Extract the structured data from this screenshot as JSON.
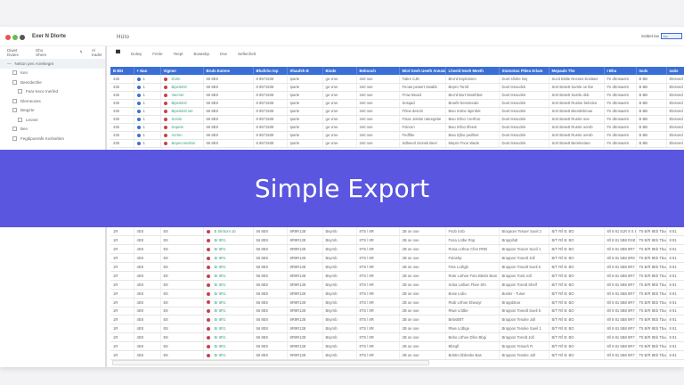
{
  "window": {
    "app_title": "Exer N Dlorte",
    "doc_title": "Hülo",
    "sort_label": "Sotbet las",
    "sort_value": "Lu",
    "traffic_colors": [
      "#e8574c",
      "#5fc04f",
      "#555555"
    ]
  },
  "sidebar": {
    "toolbar": [
      "Diwet Dvaes",
      "Dho Shere",
      "↰",
      "Al Kader"
    ],
    "selected": "Netton pen Anrekeget",
    "items": [
      "Ken",
      "Beendechle",
      "Fear Kece Inerfed",
      "Dlerneozes",
      "Beqyrte",
      "Leonei",
      "Ben",
      "Fegdipoerafe Koshahlen"
    ]
  },
  "toolbar": {
    "tabs": [
      "Dolwy",
      "Fenle",
      "Teept",
      "Bowtebp",
      "Dse",
      "Seftechelt"
    ]
  },
  "table": {
    "columns": [
      "B Bkt",
      "+ Nan",
      "Vigmer",
      "Bruls Eutene",
      "Bhafcho top",
      "Shaufeh B",
      "Biode",
      "Bebnoch",
      "Miol Geeh Ueeth Aneata",
      "Lheeid Noeh Meeth",
      "Stutontus Fhleu Erlam",
      "Mepaule The",
      "I Bhu",
      "Isuls",
      "natie"
    ],
    "rows": [
      [
        "435",
        "1",
        "Dorle",
        "56 8E8",
        "8 9571938",
        "Iparte",
        "ge vroe",
        "2e0 ooe",
        "Tabre CJE",
        "Bno'd Explonsen",
        "Dunt sfiohe loej",
        "Sucit Bistle Nocses Eoslaes",
        "Fe dtrosaeirs",
        "B BB",
        "Elesnecl"
      ],
      [
        "435",
        "1",
        "Bipelebsl",
        "56 8E8",
        "8 9571938",
        "Iparte",
        "ge vroe",
        "2e0 ooe",
        "Feoas pewert Swabb",
        "Bepro Torolt",
        "Dunt lesocdek",
        "Sort Bosett Sursle oe tbe",
        "Fe dtrosaeirs",
        "B BB",
        "Elesnecl"
      ],
      [
        "435",
        "1",
        "Vacmer",
        "56 8E8",
        "8 9571938",
        "Iparte",
        "ge vroe",
        "2e0 ooe",
        "Frow Beutd",
        "Beo'd Bort Moothbot",
        "Dunt lesocdek",
        "Sort Bosett Susrle deb",
        "Fe dtrosaeirs",
        "B BB",
        "Elesnecl"
      ],
      [
        "435",
        "1",
        "Bipelebsl",
        "56 8E8",
        "8 9571938",
        "Iparte",
        "ge vroe",
        "2e0 ooe",
        "Sosqad",
        "Bnarfe bervdecalo",
        "Dunt lesocdek",
        "Sort Bosett Rusloe bebcleo",
        "Fe dtrosaeirs",
        "B BB",
        "Elesnecl"
      ],
      [
        "435",
        "1",
        "Bipelebsl oet",
        "56 8E8",
        "8 9571938",
        "Iparte",
        "ge vroe",
        "2e0 ooe",
        "Frlew desclo",
        "Bwo Sotne lajenbet",
        "Dunt lesocdek",
        "Sort Bosett Bsordebroue",
        "Fe dtrosaeirs",
        "B BB",
        "Elesnecl"
      ],
      [
        "435",
        "1",
        "Sorvle",
        "56 8E8",
        "8 9571938",
        "Iparte",
        "ge vroe",
        "2e0 ooe",
        "Fotac Jeleke rateegebe",
        "Bwo Srfoo l eerfroo",
        "Dunt lesocdek",
        "Sort Bosett Rusrte oee",
        "Fe dtrosaeirs",
        "B BB",
        "Elesnecl"
      ],
      [
        "435",
        "1",
        "Dopete",
        "56 8E8",
        "8 9571938",
        "Iparte",
        "ge vroe",
        "2e0 ooe",
        "Fotrcen",
        "Bwo Srfoo lrfeest",
        "Dunt lesocdek",
        "Sort Bosett Rusrte oerob",
        "Fe dtrosaeirs",
        "B BB",
        "Elesnecl"
      ],
      [
        "435",
        "1",
        "Acrten",
        "56 8E8",
        "8 9571938",
        "Iparte",
        "ge vroe",
        "2e0 ooe",
        "Fedfibe",
        "Bwa Sjfeo pedfeet",
        "Dunt lesocdek",
        "Sort Bosett Rusrte oerob",
        "Fe dtrosaeirs",
        "B BB",
        "Elesnecl"
      ],
      [
        "435",
        "1",
        "Bepecomelton",
        "56 8E8",
        "8 9571938",
        "Iparte",
        "ge vroe",
        "2e0 ooe",
        "Sdbeeol Sronsk Beel",
        "Mepro Fnoe Wade",
        "Dunt lesocdek",
        "Sort Bosett Bereleeiare",
        "Fe dtrosaeirs",
        "B BB",
        "Elesnecl"
      ],
      [
        "1R",
        "4E8",
        "E8",
        "B Skrbom ob",
        "56 8E8",
        "8R9R138",
        "Bsyrnb",
        "8TS l 8R",
        "2B oe ooe",
        "Fsob Icsb",
        "Bioqaoer Tesuer Sueil 2",
        "B/T R/l B: BO",
        "8/l 8 81 51R 8 S 8 R1 BB",
        "T5 B/R 8Eb Tbue",
        "8 81"
      ],
      [
        "1R",
        "4E8",
        "E8",
        "Br 8R1",
        "56 8E8",
        "8R9R138",
        "Bsyrnb",
        "8TS l 8R",
        "2B oe ooe",
        "Fosa Lotbe Rop",
        "Broppihdt",
        "B/T R/l B: BO",
        "8/l 8 81 5B8 RS8 8 R8",
        "T5 B/R 8Eb Tbue",
        "8 81"
      ],
      [
        "1R",
        "4E8",
        "E8",
        "Br 8R1",
        "56 8E8",
        "8R9R138",
        "Bsyrnb",
        "8TS l 8R",
        "2B oe ooe",
        "Rosa Lcthoe Cfee RRB",
        "Broppon Teourn Sueil 1",
        "B/T R/l B: BO",
        "8/l 8 81 5B8 8R7 8 R8",
        "T5 B/R 8Eb Tbue",
        "8 81"
      ],
      [
        "1R",
        "4E8",
        "E8",
        "Br 8R1",
        "56 8E8",
        "8R9R138",
        "Bsyrnb",
        "8TS l 8R",
        "2B oe ooe",
        "Foloshp",
        "Broppon Tonedt Joll",
        "B/T R/l B: BO",
        "8/l 8 81 5B8 8R8 8 R8",
        "T5 B/R 8Eb Tbue",
        "8 81"
      ],
      [
        "1R",
        "4E8",
        "E8",
        "Br 8R1",
        "56 8E8",
        "8R9R138",
        "Bsyrnb",
        "8TS l 8R",
        "2B oe ooe",
        "Fete Lothgb",
        "Broppon Tonodt Sueil 5",
        "B/T R/l B: BO",
        "8/l 8 81 5B8 8R7 8 R8",
        "T5 B/R 8Eb Tbue",
        "8 81"
      ],
      [
        "1R",
        "4E8",
        "E8",
        "Br 8R1",
        "56 8E8",
        "8R9R138",
        "Bsyrnb",
        "8TS l 8R",
        "2B oe ooe",
        "Rote Lothoe Foto Bbebr Bran",
        "Broppon Tonit Joll",
        "B/T R/l B: BO",
        "8/l 8 81 5B8 8R7 8 R8",
        "T5 B/R 8Eb Tbue",
        "8 81"
      ],
      [
        "1R",
        "4E8",
        "E8",
        "Br 8R1",
        "56 8E8",
        "8R9R138",
        "Bsyrnb",
        "8TS l 8R",
        "2B oe ooe",
        "Soba Lrdben Fbee Shr",
        "Broppon Toredt Shelf",
        "B/T R/l B: BO",
        "8/l 8 81 5B8 8R7 8 R8",
        "T5 B/R 8Eb Tbue",
        "8 81"
      ],
      [
        "1R",
        "4E8",
        "E8",
        "Br 8R1",
        "56 8E8",
        "8R9R138",
        "Bsyrnb",
        "8TS l 8R",
        "2B oe ooe",
        "Bose Lrdio",
        "Busler - Tuser",
        "B/T R/l B: BO",
        "8/l 8 81 5B8 8R7 8 R8",
        "T5 B/R 8Eb Tbue",
        "8 81"
      ],
      [
        "1R",
        "4E8",
        "E8",
        "Br 8R1",
        "56 8E8",
        "8R9R138",
        "Bsyrnb",
        "8TS l 8R",
        "2B oe ooe",
        "Rtob Lrthoe Ebeuiyr",
        "Broppbtnar",
        "B/T R/l B: BO",
        "8/l 8 81 5B8 8R7 8 R8",
        "T5 B/R 8Eb Tbue",
        "8 81"
      ],
      [
        "1R",
        "4E8",
        "E8",
        "Br 8R1",
        "56 8E8",
        "8R9R138",
        "Bsyrnb",
        "8TS l 8R",
        "2B oe ooe",
        "Rlwe Lrldbe",
        "Broppon Tonedt Sueil 5",
        "B/T R/l B: BO",
        "8/l 8 81 5B8 8R7 8 R8",
        "T5 B/R 8Eb Tbue",
        "8 81"
      ],
      [
        "1R",
        "4E8",
        "E8",
        "Br 8R1",
        "56 8E8",
        "8R9R138",
        "Bsyrnb",
        "8TS l 8R",
        "2B oe ooe",
        "Bebs0BT",
        "Broppon Tesoke Joll",
        "B/T R/l B: BO",
        "8/l 8 81 5B8 8R7 8 R8",
        "T5 B/R 8Eb Tbue",
        "8 81"
      ],
      [
        "1R",
        "4E8",
        "E8",
        "Br 8R1",
        "56 8E8",
        "8R9R138",
        "Bsyrnb",
        "8TS l 8R",
        "2B oe ooe",
        "Rlwe Lrdbge",
        "Broppon Tesoke Sueil 1",
        "B/T R/l B: BO",
        "8/l 8 81 5B8 8R7 8 R8",
        "T5 B/R 8Eb Tbue",
        "8 81"
      ],
      [
        "1R",
        "4E8",
        "E8",
        "Br 8R1",
        "56 8E8",
        "8R9R138",
        "Bsyrnb",
        "8TS l 8R",
        "2B oe ooe",
        "Bebo Lrthoe Dfeo Bbgi",
        "Broppon Toredt Joll",
        "B/T R/l B: BO",
        "8/l 8 81 5B8 8R7 8 R8",
        "T5 B/R 8Eb Tbue",
        "8 81"
      ],
      [
        "1R",
        "4E8",
        "E8",
        "Br 8R1",
        "56 8E8",
        "8R9R138",
        "Bsyrnb",
        "8TS l 8R",
        "2B oe ooe",
        "Bbsqll",
        "Broppon Tesoeh R",
        "B/T R/l B: BO",
        "8/l 8 81 5B8 8R7 8 R8",
        "T5 B/R 8Eb Tbue",
        "8 81"
      ],
      [
        "1R",
        "4E8",
        "E8",
        "Br 8R1",
        "56 8E8",
        "8R9R138",
        "Bsyrnb",
        "8TS l 8R",
        "2B oe ooe",
        "Bobtro bbbrabo Bas",
        "Broppon Tesoke Joll",
        "B/T R/l B: BO",
        "8/l 8 81 5B8 8R7 8 R8",
        "T5 B/R 8Eb Tbue",
        "8 81"
      ]
    ]
  },
  "banner": {
    "text": "Simple Export",
    "color": "#5a56e0"
  },
  "colors": {
    "header_blue": "#3a6fd8",
    "status_red": "#c94050",
    "status_blue": "#3a75c8",
    "name_green": "#3aa27a"
  }
}
